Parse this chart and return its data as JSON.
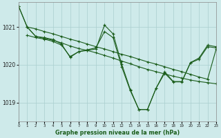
{
  "title": "Graphe pression niveau de la mer (hPa)",
  "background_color": "#ceeaea",
  "grid_color": "#aacece",
  "line_color": "#1a5c1a",
  "marker_color": "#1a5c1a",
  "xlim": [
    0,
    23
  ],
  "ylim": [
    1018.5,
    1021.65
  ],
  "yticks": [
    1019,
    1020,
    1021
  ],
  "xticks": [
    0,
    1,
    2,
    3,
    4,
    5,
    6,
    7,
    8,
    9,
    10,
    11,
    12,
    13,
    14,
    15,
    16,
    17,
    18,
    19,
    20,
    21,
    22,
    23
  ],
  "series": [
    {
      "x": [
        0,
        1,
        2,
        3,
        4,
        5,
        6,
        7,
        8,
        9,
        10,
        11,
        12,
        13,
        14,
        15,
        16,
        17,
        18,
        19,
        20,
        21,
        22,
        23
      ],
      "y": [
        1021.55,
        1021.0,
        1020.75,
        1020.7,
        1020.65,
        1020.58,
        1020.5,
        1020.43,
        1020.38,
        1020.32,
        1020.25,
        1020.18,
        1020.1,
        1020.03,
        1019.95,
        1019.88,
        1019.82,
        1019.76,
        1019.7,
        1019.65,
        1019.6,
        1019.56,
        1019.53,
        1019.5
      ]
    },
    {
      "x": [
        0,
        1,
        2,
        3,
        4,
        5,
        6,
        7,
        8,
        9,
        10,
        11,
        12,
        13,
        14,
        15,
        16,
        17,
        18,
        19,
        20,
        21,
        22,
        23
      ],
      "y": [
        1021.55,
        1021.0,
        1020.75,
        1020.72,
        1020.67,
        1020.55,
        1020.2,
        1020.35,
        1020.38,
        1020.42,
        1021.05,
        1020.82,
        1020.02,
        1019.35,
        1018.82,
        1018.82,
        1019.38,
        1019.82,
        1019.56,
        1019.56,
        1020.06,
        1020.18,
        1020.52,
        1020.48
      ]
    },
    {
      "x": [
        1,
        2,
        3,
        4,
        5,
        6,
        7,
        8,
        9,
        10,
        11,
        12,
        13,
        14,
        15,
        16,
        17,
        18,
        19,
        20,
        21,
        22,
        23
      ],
      "y": [
        1020.78,
        1020.72,
        1020.68,
        1020.62,
        1020.52,
        1020.22,
        1020.35,
        1020.4,
        1020.45,
        1020.88,
        1020.72,
        1019.95,
        1019.32,
        1018.82,
        1018.82,
        1019.38,
        1019.78,
        1019.55,
        1019.55,
        1020.05,
        1020.15,
        1020.48,
        1020.45
      ]
    },
    {
      "x": [
        1,
        2,
        3,
        4,
        5,
        6,
        7,
        8,
        9,
        10,
        11,
        12,
        13,
        14,
        15,
        16,
        17,
        18,
        19,
        20,
        21,
        22,
        23
      ],
      "y": [
        1021.0,
        1020.95,
        1020.88,
        1020.82,
        1020.75,
        1020.68,
        1020.62,
        1020.55,
        1020.48,
        1020.42,
        1020.35,
        1020.28,
        1020.22,
        1020.15,
        1020.08,
        1020.02,
        1019.95,
        1019.88,
        1019.82,
        1019.75,
        1019.68,
        1019.62,
        1020.42
      ]
    }
  ]
}
